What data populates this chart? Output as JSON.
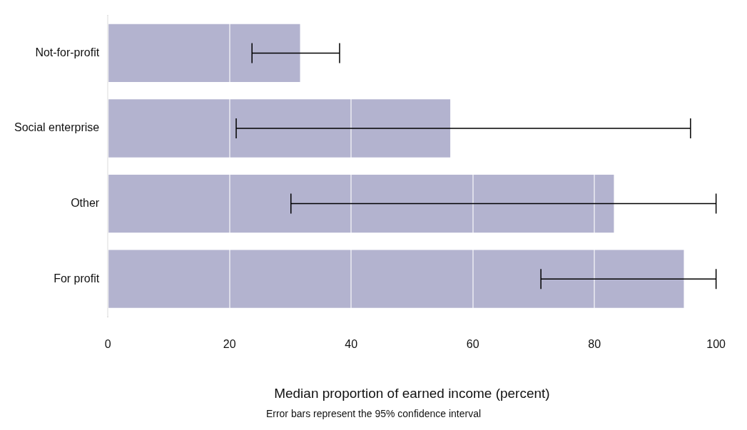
{
  "chart_data": {
    "type": "bar",
    "orientation": "horizontal",
    "xlabel": "Median proportion of earned income (percent)",
    "annotations": [
      "Error bars represent the 95% confidence interval"
    ],
    "categories": [
      "Not-for-profit",
      "Social enterprise",
      "Other",
      "For profit"
    ],
    "values": [
      31.6,
      56.3,
      83.2,
      94.7
    ],
    "errors": [
      [
        23.7,
        38.1
      ],
      [
        21.1,
        95.8
      ],
      [
        30.1,
        100
      ],
      [
        71.2,
        100
      ]
    ],
    "color": "#b3b3cf",
    "xlim": [
      0,
      100
    ],
    "xticks": [
      0,
      20,
      40,
      60,
      80,
      100
    ],
    "grid": "x",
    "legend": false
  }
}
